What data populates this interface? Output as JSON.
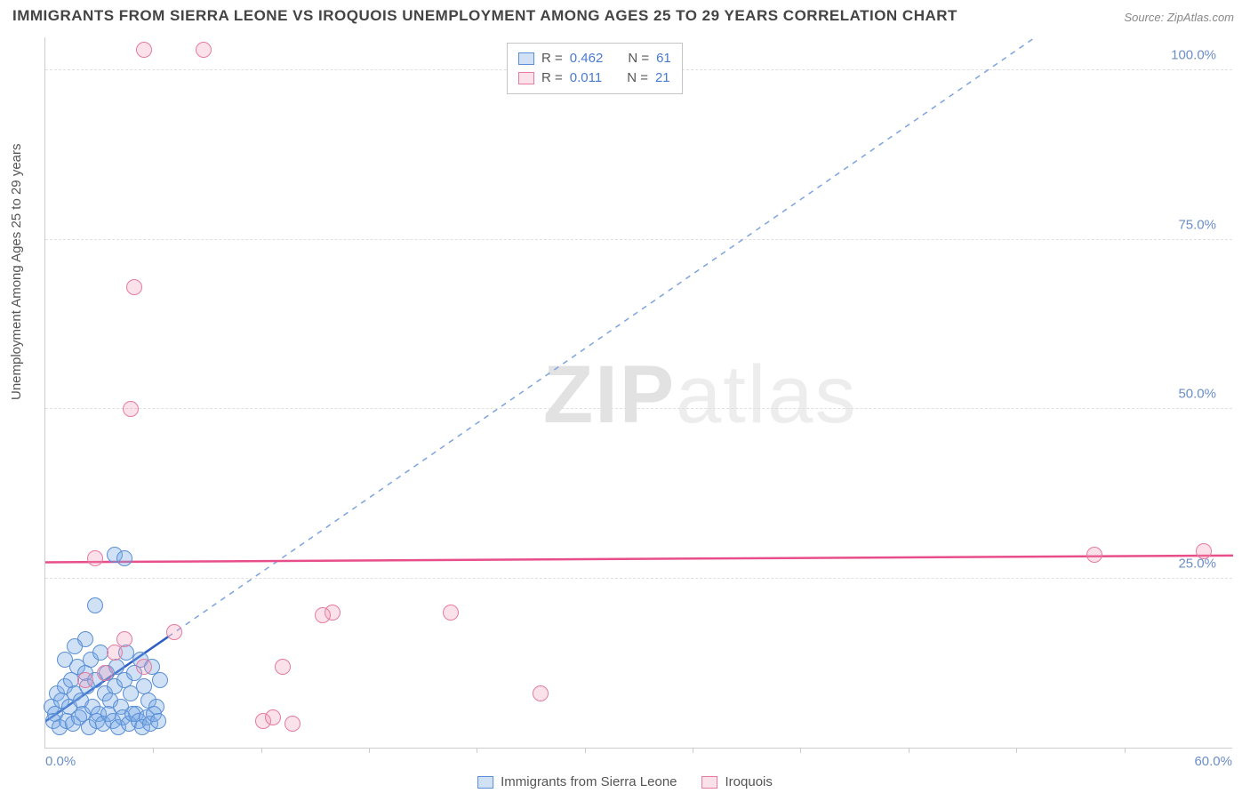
{
  "title": "IMMIGRANTS FROM SIERRA LEONE VS IROQUOIS UNEMPLOYMENT AMONG AGES 25 TO 29 YEARS CORRELATION CHART",
  "source": "Source: ZipAtlas.com",
  "ylabel": "Unemployment Among Ages 25 to 29 years",
  "watermark": "ZIPatlas",
  "chart": {
    "type": "scatter",
    "xlim": [
      0,
      60
    ],
    "ylim": [
      0,
      105
    ],
    "xtick_labels": [
      "0.0%",
      "60.0%"
    ],
    "xtick_positions": [
      0,
      60
    ],
    "xtick_minor": [
      5.45,
      10.9,
      16.35,
      21.8,
      27.25,
      32.7,
      38.15,
      43.6,
      49.05,
      54.5
    ],
    "ytick_labels": [
      "25.0%",
      "50.0%",
      "75.0%",
      "100.0%"
    ],
    "ytick_positions": [
      25,
      50,
      75,
      100
    ],
    "grid_color": "#e0e0e0",
    "background_color": "#ffffff",
    "series": [
      {
        "name": "Immigrants from Sierra Leone",
        "fill": "rgba(120,170,230,0.35)",
        "stroke": "#5a8fd6",
        "r": "0.462",
        "n": "61",
        "trend": {
          "x1": 0,
          "y1": 4,
          "x2": 6.2,
          "y2": 16.5,
          "dash_x2": 50,
          "dash_y2": 105,
          "solid_color": "#2d5fc4",
          "dash_color": "#7da3e0"
        },
        "points": [
          [
            0.3,
            6
          ],
          [
            0.5,
            5
          ],
          [
            0.6,
            8
          ],
          [
            0.8,
            7
          ],
          [
            1.0,
            9
          ],
          [
            1.2,
            6
          ],
          [
            1.3,
            10
          ],
          [
            1.5,
            8
          ],
          [
            1.6,
            12
          ],
          [
            1.8,
            7
          ],
          [
            1.9,
            5
          ],
          [
            2.0,
            11
          ],
          [
            2.1,
            9
          ],
          [
            2.3,
            13
          ],
          [
            2.4,
            6
          ],
          [
            2.5,
            10
          ],
          [
            2.7,
            5
          ],
          [
            2.8,
            14
          ],
          [
            3.0,
            8
          ],
          [
            3.1,
            11
          ],
          [
            3.3,
            7
          ],
          [
            3.5,
            9
          ],
          [
            3.6,
            12
          ],
          [
            3.8,
            6
          ],
          [
            4.0,
            10
          ],
          [
            4.1,
            14
          ],
          [
            4.3,
            8
          ],
          [
            4.5,
            11
          ],
          [
            4.6,
            5
          ],
          [
            4.8,
            13
          ],
          [
            5.0,
            9
          ],
          [
            5.2,
            7
          ],
          [
            5.4,
            12
          ],
          [
            5.6,
            6
          ],
          [
            5.8,
            10
          ],
          [
            0.4,
            4
          ],
          [
            0.7,
            3
          ],
          [
            1.1,
            4
          ],
          [
            1.4,
            3.5
          ],
          [
            1.7,
            4.5
          ],
          [
            2.2,
            3
          ],
          [
            2.6,
            4
          ],
          [
            2.9,
            3.5
          ],
          [
            3.2,
            5
          ],
          [
            3.4,
            4
          ],
          [
            3.7,
            3
          ],
          [
            3.9,
            4.5
          ],
          [
            4.2,
            3.5
          ],
          [
            4.4,
            5
          ],
          [
            4.7,
            4
          ],
          [
            4.9,
            3
          ],
          [
            5.1,
            4.5
          ],
          [
            5.3,
            3.5
          ],
          [
            5.5,
            5
          ],
          [
            5.7,
            4
          ],
          [
            2.0,
            16
          ],
          [
            2.5,
            21
          ],
          [
            3.5,
            28.5
          ],
          [
            4.0,
            28
          ],
          [
            1.5,
            15
          ],
          [
            1.0,
            13
          ]
        ]
      },
      {
        "name": "Iroquois",
        "fill": "rgba(240,150,180,0.28)",
        "stroke": "#e57ba0",
        "r": "0.011",
        "n": "21",
        "trend": {
          "x1": 0,
          "y1": 27.5,
          "x2": 60,
          "y2": 28.5,
          "solid_color": "#e84f8a"
        },
        "points": [
          [
            2.5,
            28
          ],
          [
            5.0,
            103
          ],
          [
            8.0,
            103
          ],
          [
            4.5,
            68
          ],
          [
            4.3,
            50
          ],
          [
            6.5,
            17
          ],
          [
            11.0,
            4
          ],
          [
            12.0,
            12
          ],
          [
            14.5,
            20
          ],
          [
            20.5,
            20
          ],
          [
            25.0,
            8
          ],
          [
            11.5,
            4.5
          ],
          [
            5.0,
            12
          ],
          [
            3.5,
            14
          ],
          [
            2.0,
            10
          ],
          [
            53.0,
            28.5
          ],
          [
            58.5,
            29
          ],
          [
            14.0,
            19.5
          ],
          [
            12.5,
            3.5
          ],
          [
            4.0,
            16
          ],
          [
            3.0,
            11
          ]
        ]
      }
    ]
  },
  "legend_top": {
    "rows": [
      {
        "swatch_fill": "rgba(120,170,230,0.35)",
        "swatch_stroke": "#5a8fd6",
        "r_label": "R =",
        "r_val": "0.462",
        "n_label": "N =",
        "n_val": "61"
      },
      {
        "swatch_fill": "rgba(240,150,180,0.28)",
        "swatch_stroke": "#e57ba0",
        "r_label": "R =",
        "r_val": " 0.011",
        "n_label": "N =",
        "n_val": "21"
      }
    ]
  },
  "legend_bottom": [
    {
      "swatch_fill": "rgba(120,170,230,0.35)",
      "swatch_stroke": "#5a8fd6",
      "label": "Immigrants from Sierra Leone"
    },
    {
      "swatch_fill": "rgba(240,150,180,0.28)",
      "swatch_stroke": "#e57ba0",
      "label": "Iroquois"
    }
  ]
}
